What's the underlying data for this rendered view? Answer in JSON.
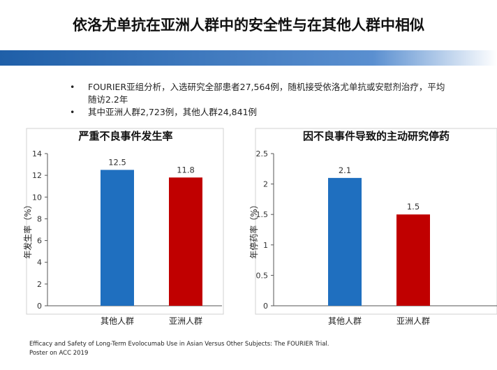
{
  "title": "依洛尤单抗在亚洲人群中的安全性与在其他人群中相似",
  "bullets": [
    "FOURIER亚组分析，入选研究全部患者27,564例，随机接受依洛尤单抗或安慰剂治疗，平均随访2.2年",
    "其中亚洲人群2,723例，其他人群24,841例"
  ],
  "footer": {
    "line1": "Efficacy and Safety of Long-Term Evolocumab Use in Asian Versus Other Subjects: The FOURIER Trial.",
    "line2": "Poster on ACC 2019"
  },
  "colors": {
    "blue": "#1f6fbf",
    "red": "#c00000",
    "accent_bar": "#2f6fb5"
  },
  "chart_data": [
    {
      "type": "bar",
      "title": "严重不良事件发生率",
      "ylabel": "年发生率（%）",
      "categories": [
        "其他人群",
        "亚洲人群"
      ],
      "values": [
        12.5,
        11.8
      ],
      "value_labels": [
        "12.5",
        "11.8"
      ],
      "ylim": [
        0,
        14
      ],
      "yticks": [
        "0",
        "2",
        "4",
        "6",
        "8",
        "10",
        "12",
        "14"
      ],
      "bar_colors": [
        "#1f6fbf",
        "#c00000"
      ],
      "grid": false
    },
    {
      "type": "bar",
      "title": "因不良事件导致的主动研究停药",
      "ylabel": "年停药率（%）",
      "categories": [
        "其他人群",
        "亚洲人群"
      ],
      "values": [
        2.1,
        1.5
      ],
      "value_labels": [
        "2.1",
        "1.5"
      ],
      "ylim": [
        0,
        2.5
      ],
      "yticks": [
        "0",
        "0.5",
        "1",
        "1.5",
        "2",
        "2.5"
      ],
      "bar_colors": [
        "#1f6fbf",
        "#c00000"
      ],
      "grid": false
    }
  ]
}
